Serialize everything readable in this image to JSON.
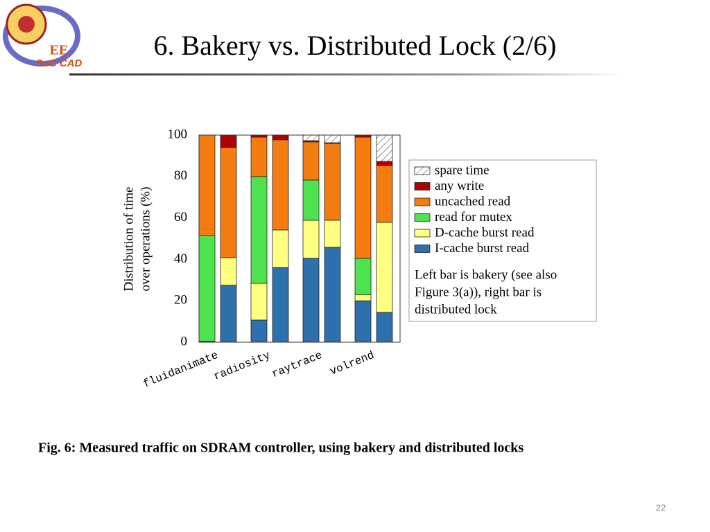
{
  "slide_title": "6. Bakery vs. Distributed Lock (2/6)",
  "logo": {
    "top": "EE",
    "bottom": "SoC CAD"
  },
  "caption": "Fig. 6: Measured traffic on SDRAM controller, using bakery and distributed locks",
  "page_number": "22",
  "chart_data": {
    "type": "stacked-bar",
    "ylabel": [
      "Distribution of time",
      "over operations (%)"
    ],
    "categories": [
      "fluidanimate",
      null,
      "radiosity",
      null,
      "raytrace",
      null,
      "volrend",
      null
    ],
    "series": [
      {
        "name": "I-cache burst read",
        "color": "#2e6fad",
        "values": [
          0.5,
          27.5,
          10.7,
          36,
          40.5,
          45.8,
          20,
          14.4
        ]
      },
      {
        "name": "D-cache burst read",
        "color": "#ffff80",
        "values": [
          0,
          13.3,
          17.7,
          18.2,
          18.4,
          13.1,
          3,
          43.5
        ]
      },
      {
        "name": "read for mutex",
        "color": "#4ee34e",
        "values": [
          51,
          0,
          51.6,
          0,
          19.4,
          0,
          17.5,
          0
        ]
      },
      {
        "name": "uncached read",
        "color": "#f57c10",
        "values": [
          48.5,
          53.2,
          19,
          43.5,
          18.4,
          37.1,
          58.5,
          27.4
        ]
      },
      {
        "name": "any write",
        "color": "#b00000",
        "values": [
          0,
          6,
          1,
          2.3,
          0.6,
          0.3,
          1,
          2
        ]
      },
      {
        "name": "spare time",
        "color": "#ffffff",
        "pattern": "hatch",
        "values": [
          0,
          0,
          0,
          0,
          2.7,
          3.7,
          0,
          12.7
        ]
      }
    ],
    "legend_note": [
      "Left bar is bakery (see also",
      "Figure 3(a)), right bar is",
      "distributed lock"
    ],
    "ylim": [
      0,
      100
    ],
    "yticks": [
      0,
      20,
      40,
      60,
      80,
      100
    ]
  }
}
